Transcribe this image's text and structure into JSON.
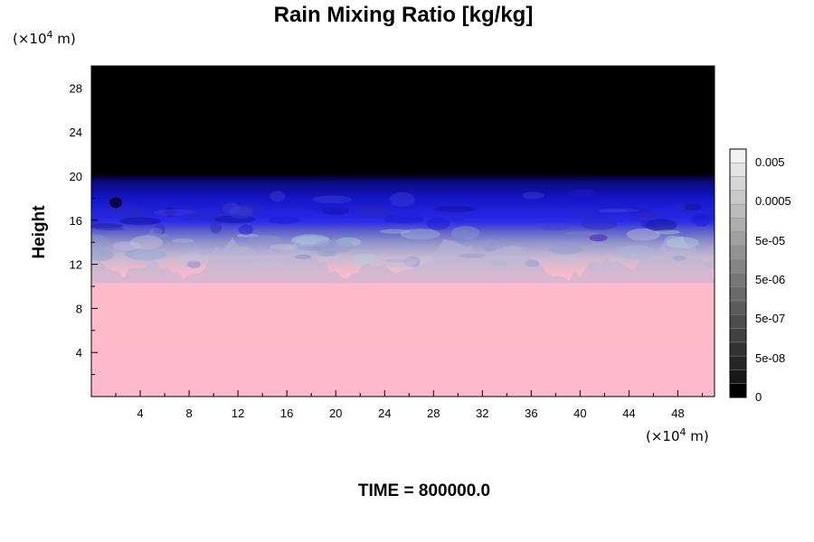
{
  "chart_data": {
    "type": "heatmap",
    "title": "Rain Mixing Ratio [kg/kg]",
    "ylabel": "Height",
    "xlabel": "",
    "x_unit_prefix": "(×10",
    "x_unit_exp": "4",
    "x_unit_suffix": " m)",
    "y_unit_prefix": "(×10",
    "y_unit_exp": "4",
    "y_unit_suffix": " m)",
    "xlim": [
      0,
      51
    ],
    "ylim": [
      0,
      30
    ],
    "x_ticks": [
      "4",
      "8",
      "12",
      "16",
      "20",
      "24",
      "28",
      "32",
      "36",
      "40",
      "44",
      "48"
    ],
    "y_ticks": [
      "4",
      "8",
      "12",
      "16",
      "20",
      "24",
      "28"
    ],
    "colorbar": {
      "labels": [
        "0.005",
        "0.0005",
        "5e-05",
        "5e-06",
        "5e-07",
        "5e-08",
        "0"
      ],
      "shades": [
        "#f2f2f2",
        "#e4e4e4",
        "#d6d6d6",
        "#c9c9c9",
        "#bbbbbb",
        "#adadad",
        "#a0a0a0",
        "#929292",
        "#858585",
        "#777777",
        "#6a6a6a",
        "#5c5c5c",
        "#4e4e4e",
        "#414141",
        "#333333",
        "#262626",
        "#181818",
        "#000000"
      ]
    },
    "layers": [
      {
        "name": "",
        "y_range": [
          0,
          10.5
        ],
        "color": "#ffb9cc"
      },
      {
        "name": "",
        "y_range": [
          10.5,
          14.5
        ],
        "color": "#b6a8cc"
      },
      {
        "name": "",
        "y_range": [
          14.5,
          19.5
        ],
        "color": "#1a1ae0"
      },
      {
        "name": "",
        "y_range": [
          19.5,
          30
        ],
        "color": "#000000"
      }
    ],
    "footer": "TIME = 800000.0"
  }
}
